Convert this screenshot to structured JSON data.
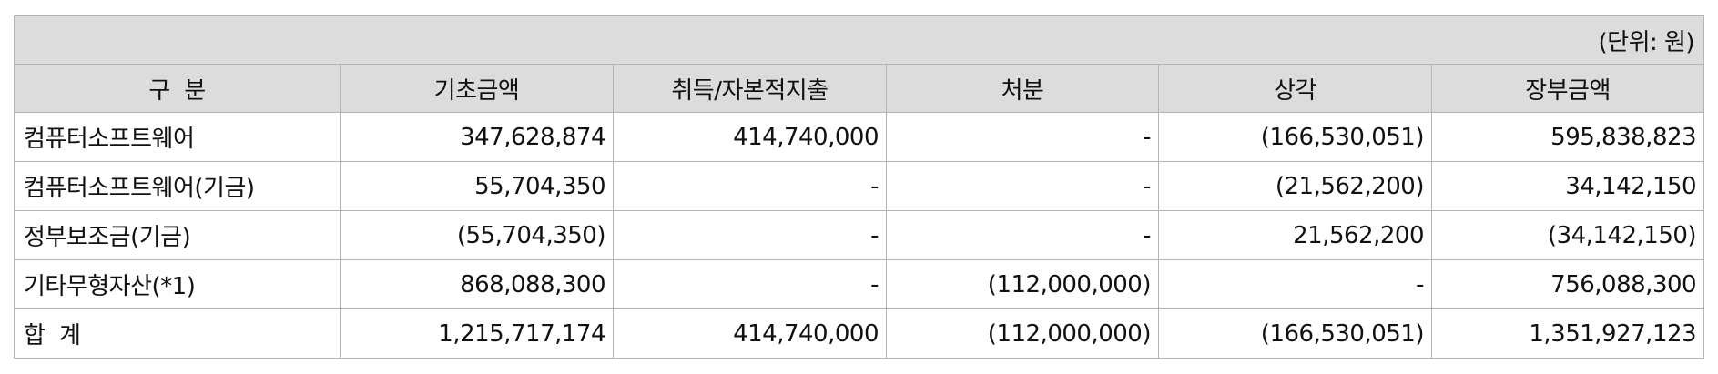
{
  "unit_note": "(단위: 원)",
  "columns": [
    "구  분",
    "기초금액",
    "취득/자본적지출",
    "처분",
    "상각",
    "장부금액"
  ],
  "rows": [
    {
      "label": "컴퓨터소프트웨어",
      "values": [
        "347,628,874",
        "414,740,000",
        "-",
        "(166,530,051)",
        "595,838,823"
      ]
    },
    {
      "label": "컴퓨터소프트웨어(기금)",
      "values": [
        "55,704,350",
        "-",
        "-",
        "(21,562,200)",
        "34,142,150"
      ]
    },
    {
      "label": "정부보조금(기금)",
      "values": [
        "(55,704,350)",
        "-",
        "-",
        "21,562,200",
        "(34,142,150)"
      ]
    },
    {
      "label": "기타무형자산(*1)",
      "values": [
        "868,088,300",
        "-",
        "(112,000,000)",
        "-",
        "756,088,300"
      ]
    },
    {
      "label": "합  계",
      "values": [
        "1,215,717,174",
        "414,740,000",
        "(112,000,000)",
        "(166,530,051)",
        "1,351,927,123"
      ]
    }
  ]
}
